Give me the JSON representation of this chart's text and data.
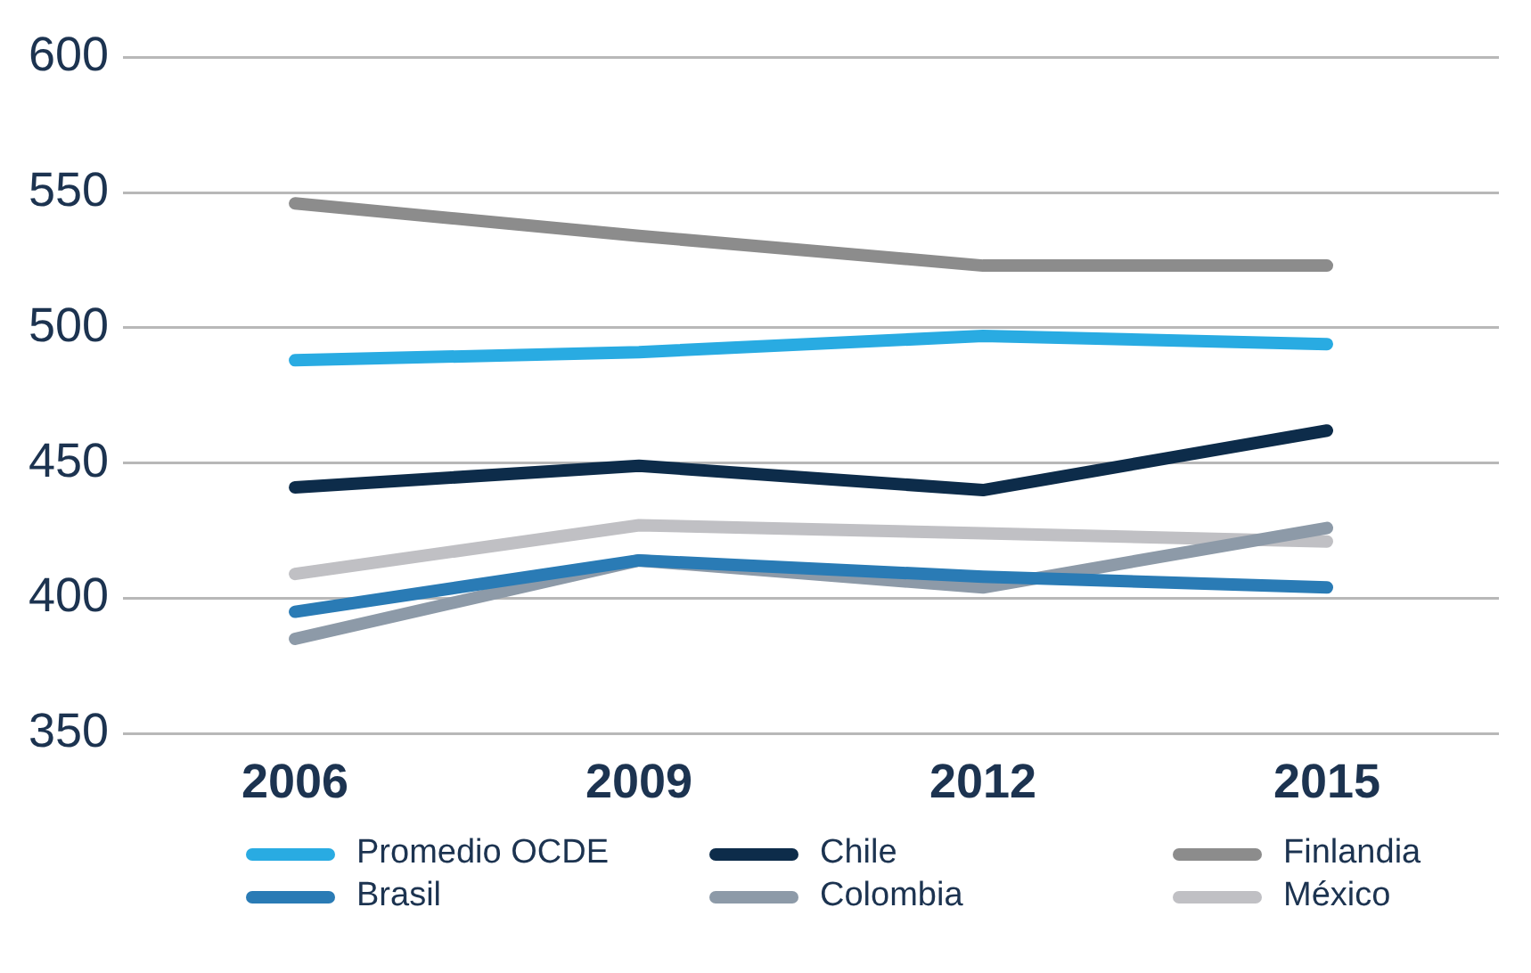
{
  "chart_data": {
    "type": "line",
    "categories": [
      "2006",
      "2009",
      "2012",
      "2015"
    ],
    "series": [
      {
        "name": "Promedio OCDE",
        "color": "#29abe2",
        "values": [
          488,
          491,
          497,
          494
        ]
      },
      {
        "name": "Chile",
        "color": "#0d2c4a",
        "values": [
          441,
          449,
          440,
          462
        ]
      },
      {
        "name": "Finlandia",
        "color": "#8c8c8c",
        "values": [
          546,
          534,
          523,
          523
        ]
      },
      {
        "name": "Brasil",
        "color": "#2a7bb5",
        "values": [
          395,
          414,
          408,
          404
        ]
      },
      {
        "name": "Colombia",
        "color": "#8d9aa8",
        "values": [
          385,
          414,
          404,
          426
        ]
      },
      {
        "name": "México",
        "color": "#c0c0c4",
        "values": [
          409,
          427,
          424,
          421
        ]
      }
    ],
    "ylim": [
      350,
      600
    ],
    "yticks": [
      350,
      400,
      450,
      500,
      550,
      600
    ],
    "grid": "y",
    "legend": "bottom",
    "marker": "none",
    "line_style": "solid"
  }
}
